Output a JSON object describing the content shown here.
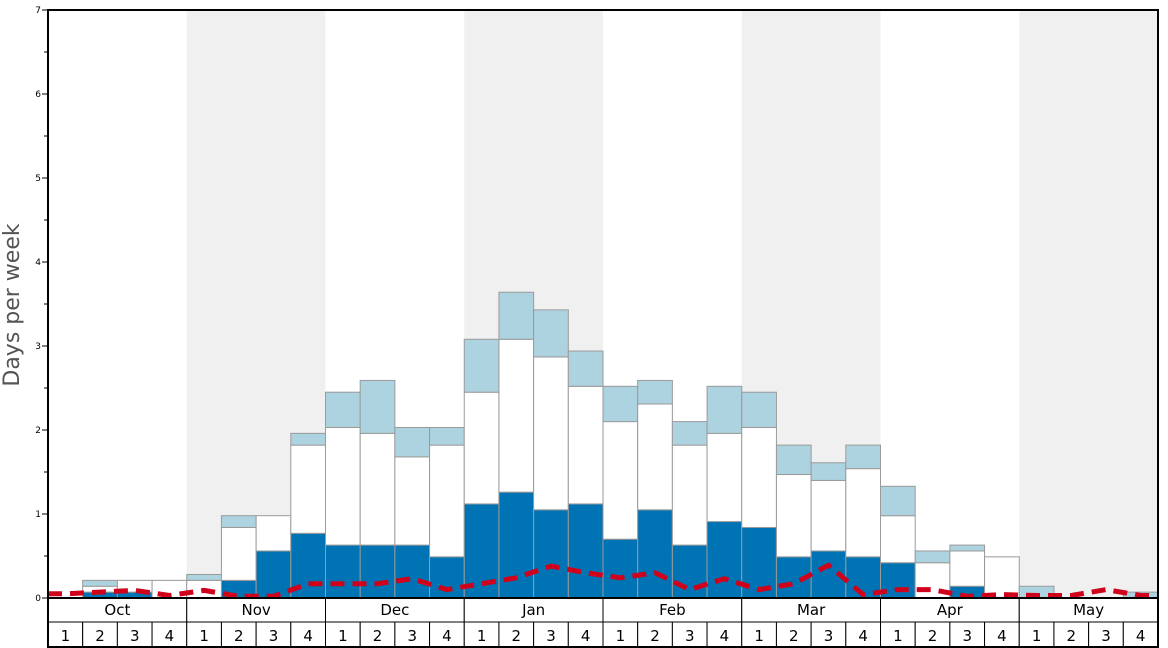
{
  "chart_data": {
    "type": "bar",
    "stacked": true,
    "ylabel": "Days per week",
    "ylim": [
      0,
      7
    ],
    "y_major_ticks": [
      "0",
      "1",
      "2",
      "3",
      "4",
      "5",
      "6",
      "7"
    ],
    "months": [
      "Oct",
      "Nov",
      "Dec",
      "Jan",
      "Feb",
      "Mar",
      "Apr",
      "May"
    ],
    "weeks": [
      "1",
      "2",
      "3",
      "4"
    ],
    "band_colors": {
      "light": "#ffffff",
      "shaded": "#f0f0f0"
    },
    "series": [
      {
        "key": "dark",
        "color": "#0073b5",
        "values": [
          0,
          0.07,
          0.07,
          0,
          0,
          0.21,
          0.56,
          0.77,
          0.63,
          0.63,
          0.63,
          0.49,
          1.12,
          1.26,
          1.05,
          1.12,
          0.7,
          1.05,
          0.63,
          0.91,
          0.84,
          0.49,
          0.56,
          0.49,
          0.42,
          0,
          0.14,
          0,
          0,
          0,
          0,
          0
        ]
      },
      {
        "key": "white",
        "color": "#ffffff",
        "values": [
          0,
          0.07,
          0.14,
          0.21,
          0.21,
          0.63,
          0.42,
          1.05,
          1.4,
          1.33,
          1.05,
          1.33,
          1.33,
          1.82,
          1.82,
          1.4,
          1.4,
          1.26,
          1.19,
          1.05,
          1.19,
          0.98,
          0.84,
          1.05,
          0.56,
          0.42,
          0.42,
          0.49,
          0,
          0,
          0,
          0
        ]
      },
      {
        "key": "lightblue",
        "color": "#aed3e0",
        "values": [
          0,
          0.07,
          0,
          0,
          0.07,
          0.14,
          0,
          0.14,
          0.42,
          0.63,
          0.35,
          0.21,
          0.63,
          0.56,
          0.56,
          0.42,
          0.42,
          0.28,
          0.28,
          0.56,
          0.42,
          0.35,
          0.21,
          0.28,
          0.35,
          0.14,
          0.07,
          0,
          0.14,
          0,
          0,
          0.07
        ]
      }
    ],
    "average_line": {
      "color": "#d0021b",
      "style": "dashed",
      "values": [
        0.05,
        0.07,
        0.09,
        0.03,
        0.09,
        0.02,
        0.02,
        0.17,
        0.17,
        0.17,
        0.23,
        0.1,
        0.17,
        0.24,
        0.38,
        0.3,
        0.24,
        0.3,
        0.1,
        0.23,
        0.1,
        0.17,
        0.39,
        0.04,
        0.1,
        0.1,
        0.02,
        0.04,
        0.03,
        0.03,
        0.1,
        0.03
      ]
    }
  }
}
